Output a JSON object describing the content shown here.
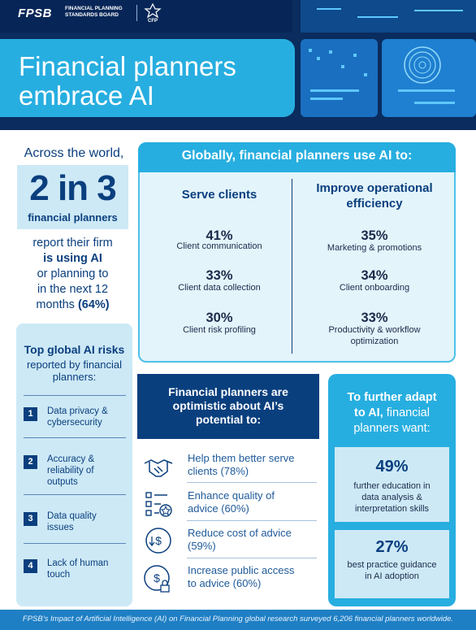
{
  "header": {
    "logo_text": "FPSB",
    "logo_subtext": "FINANCIAL PLANNING STANDARDS BOARD",
    "cfp_mark": "CFP",
    "title_line1": "Financial planners",
    "title_line2": "embrace AI"
  },
  "left": {
    "across": "Across the world,",
    "stat": "2 in 3",
    "stat_sub": "financial planners",
    "report_line1": "report their firm",
    "report_line2": "is using AI",
    "report_line3": "or planning to",
    "report_line4": "in the next 12",
    "report_line5": "months",
    "report_pct": "(64%)"
  },
  "risks": {
    "title": "Top global AI risks",
    "subtitle_line1": "reported by financial",
    "subtitle_line2": "planners:",
    "items": [
      {
        "num": "1",
        "text_line1": "Data privacy &",
        "text_line2": "cybersecurity",
        "text_line3": ""
      },
      {
        "num": "2",
        "text_line1": "Accuracy &",
        "text_line2": "reliability of",
        "text_line3": "outputs"
      },
      {
        "num": "3",
        "text_line1": "Data quality",
        "text_line2": "issues",
        "text_line3": ""
      },
      {
        "num": "4",
        "text_line1": "Lack of human",
        "text_line2": "touch",
        "text_line3": ""
      }
    ]
  },
  "globally": {
    "title": "Globally, financial planners use AI to:",
    "col1_title": "Serve clients",
    "col2_title_line1": "Improve operational",
    "col2_title_line2": "efficiency",
    "col1": [
      {
        "pct": "41%",
        "label": "Client communication",
        "label2": ""
      },
      {
        "pct": "33%",
        "label": "Client data collection",
        "label2": ""
      },
      {
        "pct": "30%",
        "label": "Client risk profiling",
        "label2": ""
      }
    ],
    "col2": [
      {
        "pct": "35%",
        "label": "Marketing & promotions",
        "label2": ""
      },
      {
        "pct": "34%",
        "label": "Client onboarding",
        "label2": ""
      },
      {
        "pct": "33%",
        "label": "Productivity & workflow",
        "label2": "optimization"
      }
    ]
  },
  "optimistic": {
    "title_line1": "Financial planners are",
    "title_line2": "optimistic about AI’s",
    "title_line3": "potential to:",
    "items": [
      {
        "icon": "handshake-icon",
        "line1": "Help them better serve",
        "line2": "clients (78%)"
      },
      {
        "icon": "checklist-icon",
        "line1": "Enhance quality of",
        "line2": "advice (60%)"
      },
      {
        "icon": "dollar-down-icon",
        "line1": "Reduce cost of advice",
        "line2": "(59%)"
      },
      {
        "icon": "lock-dollar-icon",
        "line1": "Increase public access",
        "line2": "to advice (60%)"
      }
    ]
  },
  "adapt": {
    "title_line1": "To further adapt",
    "title_line2_bold": "to AI,",
    "title_line2_rest": " financial",
    "title_line3": "planners want:",
    "cards": [
      {
        "pct": "49%",
        "line1": "further education in",
        "line2": "data analysis &",
        "line3": "interpretation skills"
      },
      {
        "pct": "27%",
        "line1": "best practice guidance",
        "line2": "in AI adoption",
        "line3": ""
      }
    ]
  },
  "footer": {
    "text": "FPSB’s Impact of Artificial Intelligence (AI) on Financial Planning global research surveyed 6,206 financial planners worldwide."
  },
  "colors": {
    "navy": "#0a3f7e",
    "accent_blue": "#27aee0",
    "light_blue": "#cde9f6"
  }
}
